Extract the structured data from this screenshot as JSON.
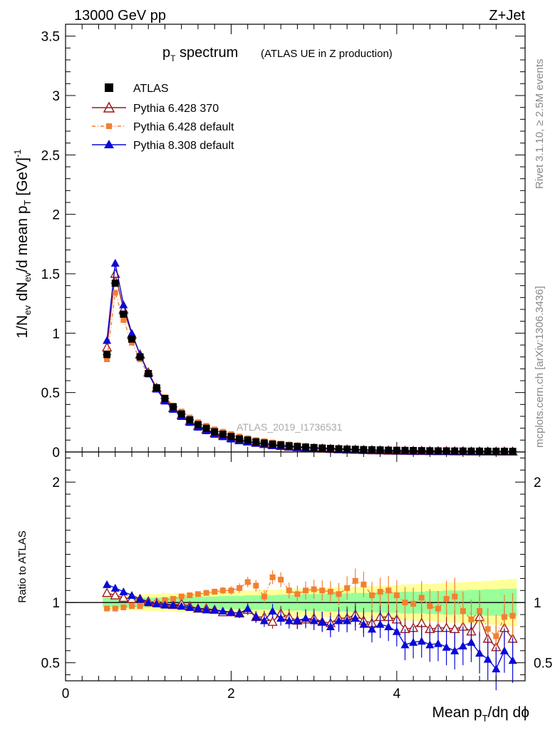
{
  "header": {
    "left": "13000 GeV pp",
    "right": "Z+Jet"
  },
  "side_labels": {
    "rivet": "Rivet 3.1.10, ≥ 2.5M events",
    "mcplots": "mcplots.cern.ch [arXiv:1306.3436]"
  },
  "title": {
    "main": "p",
    "main_sub": "T",
    "main_rest": " spectrum",
    "small": "(ATLAS UE in Z production)"
  },
  "watermark": "ATLAS_2019_I1736531",
  "colors": {
    "atlas": "#000000",
    "p6_370": "#9b1c1c",
    "p6_def": "#f47f30",
    "p8_def": "#0a0ad8",
    "band_yellow": "#ffff99",
    "band_green": "#99ff99"
  },
  "chart_data": [
    {
      "type": "scatter",
      "panel": "main",
      "ylabel": "1/N_ev dN_ev/d mean p_T [GeV]^-1",
      "xlim": [
        0,
        5.55
      ],
      "ylim": [
        0,
        3.6
      ],
      "yticks": [
        0,
        0.5,
        1,
        1.5,
        2,
        2.5,
        3,
        3.5
      ],
      "ytick_labels": [
        "0",
        "0.5",
        "1",
        "1.5",
        "2",
        "2.5",
        "3",
        "3.5"
      ],
      "legend": [
        "ATLAS",
        "Pythia 6.428 370",
        "Pythia 6.428 default",
        "Pythia 8.308 default"
      ],
      "legend_position": "top-left",
      "x": [
        0.5,
        0.6,
        0.7,
        0.8,
        0.9,
        1.0,
        1.1,
        1.2,
        1.3,
        1.4,
        1.5,
        1.6,
        1.7,
        1.8,
        1.9,
        2.0,
        2.1,
        2.2,
        2.3,
        2.4,
        2.5,
        2.6,
        2.7,
        2.8,
        2.9,
        3.0,
        3.1,
        3.2,
        3.3,
        3.4,
        3.5,
        3.6,
        3.7,
        3.8,
        3.9,
        4.0,
        4.1,
        4.2,
        4.3,
        4.4,
        4.5,
        4.6,
        4.7,
        4.8,
        4.9,
        5.0,
        5.1,
        5.2,
        5.3,
        5.4
      ],
      "series": [
        {
          "name": "ATLAS",
          "values": [
            0.82,
            1.42,
            1.16,
            0.95,
            0.8,
            0.66,
            0.54,
            0.45,
            0.38,
            0.32,
            0.27,
            0.23,
            0.2,
            0.17,
            0.15,
            0.13,
            0.11,
            0.1,
            0.085,
            0.075,
            0.066,
            0.059,
            0.052,
            0.046,
            0.041,
            0.037,
            0.033,
            0.03,
            0.027,
            0.024,
            0.022,
            0.02,
            0.018,
            0.017,
            0.015,
            0.014,
            0.013,
            0.012,
            0.011,
            0.01,
            0.009,
            0.009,
            0.008,
            0.008,
            0.007,
            0.007,
            0.006,
            0.006,
            0.006,
            0.005
          ]
        },
        {
          "name": "Pythia 6.428 370",
          "values": [
            0.88,
            1.5,
            1.2,
            0.99,
            0.82,
            0.67,
            0.54,
            0.44,
            0.37,
            0.31,
            0.26,
            0.22,
            0.19,
            0.16,
            0.14,
            0.12,
            0.1,
            0.09,
            0.078,
            0.068,
            0.058,
            0.051,
            0.045,
            0.04,
            0.035,
            0.032,
            0.029,
            0.026,
            0.023,
            0.021,
            0.019,
            0.017,
            0.015,
            0.014,
            0.012,
            0.011,
            0.01,
            0.009,
            0.009,
            0.008,
            0.007,
            0.007,
            0.006,
            0.006,
            0.005,
            0.005,
            0.005,
            0.004,
            0.004,
            0.004
          ]
        },
        {
          "name": "Pythia 6.428 default",
          "values": [
            0.78,
            1.34,
            1.11,
            0.92,
            0.78,
            0.65,
            0.54,
            0.46,
            0.39,
            0.34,
            0.29,
            0.25,
            0.22,
            0.19,
            0.17,
            0.15,
            0.13,
            0.115,
            0.1,
            0.09,
            0.08,
            0.07,
            0.062,
            0.055,
            0.049,
            0.044,
            0.039,
            0.035,
            0.031,
            0.028,
            0.026,
            0.023,
            0.021,
            0.019,
            0.017,
            0.015,
            0.014,
            0.013,
            0.012,
            0.011,
            0.01,
            0.009,
            0.008,
            0.008,
            0.007,
            0.006,
            0.006,
            0.005,
            0.005,
            0.004
          ]
        },
        {
          "name": "Pythia 8.308 default",
          "values": [
            0.94,
            1.59,
            1.24,
            1.0,
            0.82,
            0.66,
            0.53,
            0.43,
            0.36,
            0.3,
            0.25,
            0.21,
            0.18,
            0.15,
            0.13,
            0.11,
            0.095,
            0.085,
            0.074,
            0.064,
            0.055,
            0.049,
            0.043,
            0.038,
            0.034,
            0.031,
            0.027,
            0.024,
            0.022,
            0.019,
            0.017,
            0.015,
            0.014,
            0.012,
            0.011,
            0.01,
            0.009,
            0.008,
            0.008,
            0.007,
            0.006,
            0.006,
            0.005,
            0.005,
            0.004,
            0.004,
            0.004,
            0.003,
            0.003,
            0.003
          ]
        }
      ]
    },
    {
      "type": "line",
      "panel": "ratio",
      "ylabel": "Ratio to ATLAS",
      "xlabel": "Mean p_T/dη dϕ",
      "xlim": [
        0,
        5.55
      ],
      "ylim": [
        0.35,
        2.25
      ],
      "xticks": [
        0,
        2,
        4
      ],
      "xtick_labels": [
        "0",
        "2",
        "4"
      ],
      "yticks": [
        0.5,
        1,
        2
      ],
      "ytick_labels": [
        "0.5",
        "1",
        "2"
      ],
      "reference_line": 1,
      "x": [
        0.5,
        0.6,
        0.7,
        0.8,
        0.9,
        1.0,
        1.1,
        1.2,
        1.3,
        1.4,
        1.5,
        1.6,
        1.7,
        1.8,
        1.9,
        2.0,
        2.1,
        2.2,
        2.3,
        2.4,
        2.5,
        2.6,
        2.7,
        2.8,
        2.9,
        3.0,
        3.1,
        3.2,
        3.3,
        3.4,
        3.5,
        3.6,
        3.7,
        3.8,
        3.9,
        4.0,
        4.1,
        4.2,
        4.3,
        4.4,
        4.5,
        4.6,
        4.7,
        4.8,
        4.9,
        5.0,
        5.1,
        5.2,
        5.3,
        5.4
      ],
      "band_green_halfwidth": [
        0.04,
        0.04,
        0.04,
        0.04,
        0.04,
        0.04,
        0.04,
        0.045,
        0.045,
        0.045,
        0.05,
        0.05,
        0.05,
        0.05,
        0.055,
        0.055,
        0.055,
        0.06,
        0.06,
        0.06,
        0.06,
        0.065,
        0.065,
        0.065,
        0.07,
        0.07,
        0.07,
        0.075,
        0.075,
        0.075,
        0.08,
        0.08,
        0.08,
        0.085,
        0.085,
        0.085,
        0.09,
        0.09,
        0.09,
        0.095,
        0.095,
        0.1,
        0.1,
        0.1,
        0.105,
        0.105,
        0.11,
        0.11,
        0.115,
        0.115
      ],
      "band_yellow_halfwidth": [
        0.06,
        0.06,
        0.06,
        0.065,
        0.065,
        0.07,
        0.07,
        0.075,
        0.075,
        0.08,
        0.08,
        0.085,
        0.085,
        0.09,
        0.09,
        0.095,
        0.095,
        0.1,
        0.1,
        0.105,
        0.105,
        0.11,
        0.11,
        0.115,
        0.115,
        0.12,
        0.12,
        0.125,
        0.125,
        0.13,
        0.13,
        0.135,
        0.135,
        0.14,
        0.14,
        0.145,
        0.15,
        0.15,
        0.155,
        0.155,
        0.16,
        0.165,
        0.165,
        0.17,
        0.175,
        0.175,
        0.18,
        0.185,
        0.19,
        0.195
      ],
      "series": [
        {
          "name": "Pythia 6.428 370",
          "values": [
            1.08,
            1.06,
            1.04,
            1.03,
            1.03,
            1.01,
            1.0,
            0.99,
            0.98,
            0.99,
            0.97,
            0.95,
            0.95,
            0.94,
            0.92,
            0.92,
            0.91,
            0.94,
            0.88,
            0.88,
            0.84,
            0.91,
            0.88,
            0.85,
            0.86,
            0.87,
            0.84,
            0.83,
            0.87,
            0.87,
            0.9,
            0.85,
            0.83,
            0.88,
            0.88,
            0.86,
            0.78,
            0.79,
            0.83,
            0.78,
            0.79,
            0.79,
            0.78,
            0.8,
            0.76,
            0.88,
            0.7,
            0.63,
            0.79,
            0.7
          ]
        },
        {
          "name": "Pythia 6.428 default",
          "values": [
            0.95,
            0.95,
            0.96,
            0.97,
            0.97,
            0.99,
            1.0,
            1.02,
            1.03,
            1.05,
            1.06,
            1.07,
            1.08,
            1.09,
            1.1,
            1.1,
            1.12,
            1.17,
            1.14,
            1.05,
            1.21,
            1.19,
            1.1,
            1.07,
            1.1,
            1.11,
            1.1,
            1.09,
            1.07,
            1.12,
            1.18,
            1.15,
            1.06,
            1.09,
            1.1,
            1.06,
            1.0,
            0.99,
            1.04,
            0.97,
            0.95,
            1.03,
            1.05,
            0.93,
            0.86,
            0.93,
            0.78,
            0.72,
            0.88,
            0.89
          ]
        },
        {
          "name": "Pythia 8.308 default",
          "values": [
            1.15,
            1.12,
            1.09,
            1.06,
            1.03,
            1.0,
            0.99,
            0.98,
            0.98,
            0.97,
            0.96,
            0.95,
            0.94,
            0.94,
            0.93,
            0.92,
            0.91,
            0.95,
            0.88,
            0.85,
            0.93,
            0.87,
            0.85,
            0.85,
            0.87,
            0.85,
            0.84,
            0.8,
            0.85,
            0.85,
            0.87,
            0.82,
            0.78,
            0.82,
            0.8,
            0.76,
            0.65,
            0.67,
            0.68,
            0.65,
            0.66,
            0.63,
            0.6,
            0.64,
            0.67,
            0.58,
            0.53,
            0.45,
            0.6,
            0.52
          ]
        }
      ]
    }
  ]
}
